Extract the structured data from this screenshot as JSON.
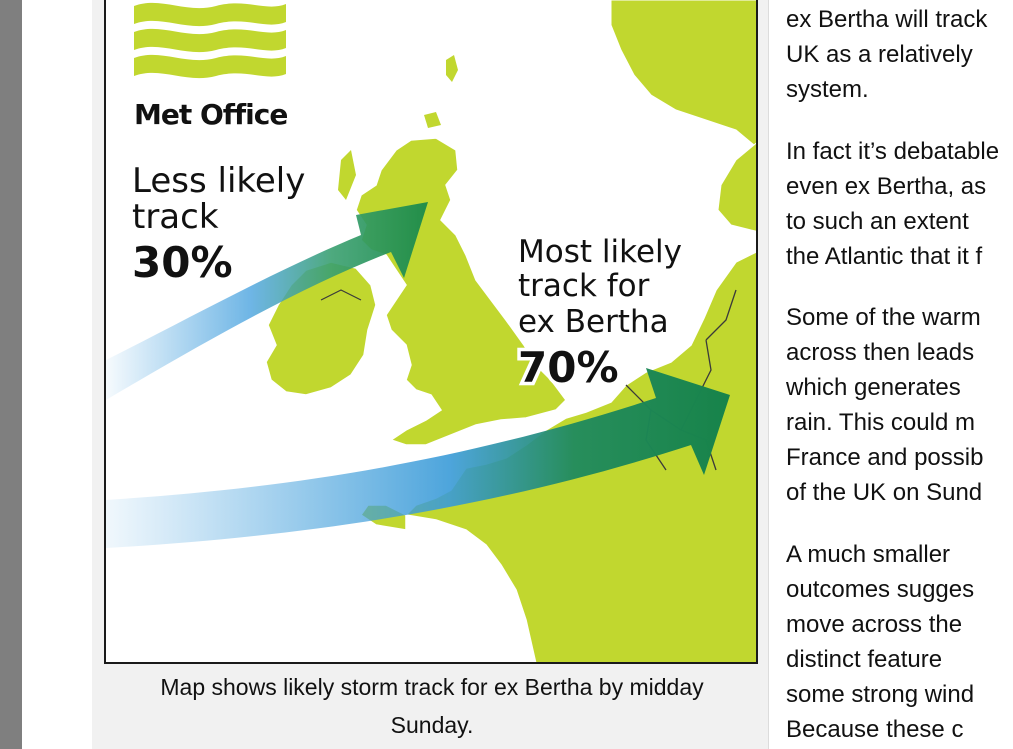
{
  "map": {
    "brand": "Met Office",
    "less_likely": {
      "line1": "Less likely",
      "line2": "track",
      "percent": "30%"
    },
    "most_likely": {
      "line1": "Most likely",
      "line2": "track for",
      "line3": "ex Bertha",
      "percent": "70%"
    },
    "colors": {
      "land": "#c1d72f",
      "sea": "#ffffff",
      "logo_wave": "#c1d72f",
      "arrow_blue": "#4aa3df",
      "arrow_green": "#1a8a4a",
      "border": "#1a1a1a"
    },
    "features": [
      "uk",
      "ireland",
      "france",
      "benelux",
      "scandinavia",
      "less-likely-track-arrow",
      "most-likely-track-arrow"
    ]
  },
  "caption": {
    "line1": "Map shows likely storm track for ex Bertha by midday",
    "line2": "Sunday."
  },
  "article": {
    "p1": [
      "ex Bertha will track",
      "UK as a relatively",
      "system."
    ],
    "p2": [
      "In fact it’s debatable",
      "even ex Bertha, as",
      "to such an extent",
      "the Atlantic that it f"
    ],
    "p3": [
      "Some of the warm",
      "across then leads",
      "which generates",
      "rain. This could m",
      "France and possib",
      "of the UK on Sund"
    ],
    "p4": [
      "A much smaller",
      "outcomes sugges",
      "move across the",
      "distinct feature",
      "some strong wind",
      "Because these c"
    ]
  }
}
